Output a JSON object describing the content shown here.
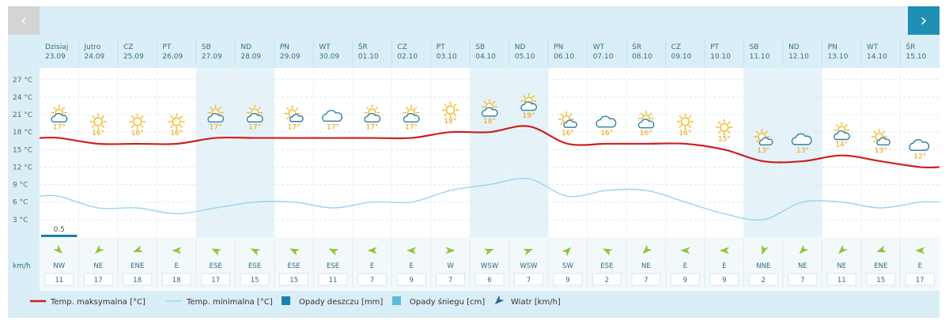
{
  "navigation": {
    "prev_icon": "chevron-left-icon",
    "next_icon": "chevron-right-icon",
    "prev_glyph": "‹",
    "next_glyph": "›"
  },
  "colors": {
    "max_temp": "#cc1f1f",
    "min_temp": "#8fd3ec",
    "rain": "#1b7fb0",
    "snow": "#5bbcd8",
    "wind_arrow": "#8cc63f",
    "weekend_band": "#e5f3f8",
    "panel": "#d9eef6"
  },
  "wind_unit": "km/h",
  "chart_data": {
    "type": "line",
    "ylim": [
      0,
      29
    ],
    "yticks": [
      {
        "value": 27,
        "label": "27 °C"
      },
      {
        "value": 24,
        "label": "24 °C"
      },
      {
        "value": 21,
        "label": "21 °C"
      },
      {
        "value": 18,
        "label": "18 °C"
      },
      {
        "value": 15,
        "label": "15 °C"
      },
      {
        "value": 12,
        "label": "12 °C"
      },
      {
        "value": 9,
        "label": "9 °C"
      },
      {
        "value": 6,
        "label": "6 °C"
      },
      {
        "value": 3,
        "label": "3 °C"
      }
    ],
    "days": [
      {
        "name": "Dzisiaj",
        "date": "23.09",
        "weekend": false,
        "icon": "partly-cloudy-sun-icon",
        "label": "17°",
        "wind_dir": "NW",
        "wind_angle": 135,
        "wind_speed": "11"
      },
      {
        "name": "Jutro",
        "date": "24.09",
        "weekend": false,
        "icon": "sun-icon",
        "label": "16°",
        "wind_dir": "NE",
        "wind_angle": 225,
        "wind_speed": "17"
      },
      {
        "name": "CZ",
        "date": "25.09",
        "weekend": false,
        "icon": "sun-icon",
        "label": "16°",
        "wind_dir": "ENE",
        "wind_angle": 250,
        "wind_speed": "18"
      },
      {
        "name": "PT",
        "date": "26.09",
        "weekend": false,
        "icon": "sun-icon",
        "label": "16°",
        "wind_dir": "E",
        "wind_angle": 270,
        "wind_speed": "18"
      },
      {
        "name": "SB",
        "date": "27.09",
        "weekend": true,
        "icon": "partly-cloudy-sun-icon",
        "label": "17°",
        "wind_dir": "ESE",
        "wind_angle": 295,
        "wind_speed": "17"
      },
      {
        "name": "ND",
        "date": "28.09",
        "weekend": true,
        "icon": "partly-cloudy-sun-icon",
        "label": "17°",
        "wind_dir": "ESE",
        "wind_angle": 295,
        "wind_speed": "15"
      },
      {
        "name": "PN",
        "date": "29.09",
        "weekend": false,
        "icon": "sun-cloud-icon",
        "label": "17°",
        "wind_dir": "ESE",
        "wind_angle": 295,
        "wind_speed": "15"
      },
      {
        "name": "WT",
        "date": "30.09",
        "weekend": false,
        "icon": "cloud-icon",
        "label": "17°",
        "wind_dir": "ESE",
        "wind_angle": 295,
        "wind_speed": "11"
      },
      {
        "name": "ŚR",
        "date": "01.10",
        "weekend": false,
        "icon": "partly-cloudy-sun-icon",
        "label": "17°",
        "wind_dir": "E",
        "wind_angle": 270,
        "wind_speed": "7"
      },
      {
        "name": "CZ",
        "date": "02.10",
        "weekend": false,
        "icon": "partly-cloudy-sun-icon",
        "label": "17°",
        "wind_dir": "E",
        "wind_angle": 270,
        "wind_speed": "9"
      },
      {
        "name": "PT",
        "date": "03.10",
        "weekend": false,
        "icon": "sun-icon",
        "label": "18°",
        "wind_dir": "W",
        "wind_angle": 90,
        "wind_speed": "7"
      },
      {
        "name": "SB",
        "date": "04.10",
        "weekend": true,
        "icon": "partly-cloudy-sun-icon",
        "label": "18°",
        "wind_dir": "WSW",
        "wind_angle": 70,
        "wind_speed": "6"
      },
      {
        "name": "ND",
        "date": "05.10",
        "weekend": true,
        "icon": "partly-cloudy-sun-icon",
        "label": "19°",
        "wind_dir": "WSW",
        "wind_angle": 70,
        "wind_speed": "7"
      },
      {
        "name": "PN",
        "date": "06.10",
        "weekend": false,
        "icon": "sun-cloud-icon",
        "label": "16°",
        "wind_dir": "SW",
        "wind_angle": 45,
        "wind_speed": "9"
      },
      {
        "name": "WT",
        "date": "07.10",
        "weekend": false,
        "icon": "cloud-icon",
        "label": "16°",
        "wind_dir": "ESE",
        "wind_angle": 295,
        "wind_speed": "2"
      },
      {
        "name": "ŚR",
        "date": "08.10",
        "weekend": false,
        "icon": "partly-cloudy-sun-icon",
        "label": "16°",
        "wind_dir": "NE",
        "wind_angle": 225,
        "wind_speed": "7"
      },
      {
        "name": "CZ",
        "date": "09.10",
        "weekend": false,
        "icon": "sun-icon",
        "label": "16°",
        "wind_dir": "E",
        "wind_angle": 270,
        "wind_speed": "9"
      },
      {
        "name": "PT",
        "date": "10.10",
        "weekend": false,
        "icon": "sun-icon",
        "label": "15°",
        "wind_dir": "E",
        "wind_angle": 270,
        "wind_speed": "9"
      },
      {
        "name": "SB",
        "date": "11.10",
        "weekend": true,
        "icon": "sun-cloud-icon",
        "label": "13°",
        "wind_dir": "NNE",
        "wind_angle": 200,
        "wind_speed": "2"
      },
      {
        "name": "ND",
        "date": "12.10",
        "weekend": true,
        "icon": "cloud-icon",
        "label": "13°",
        "wind_dir": "NE",
        "wind_angle": 225,
        "wind_speed": "7"
      },
      {
        "name": "PN",
        "date": "13.10",
        "weekend": false,
        "icon": "partly-cloudy-sun-icon",
        "label": "14°",
        "wind_dir": "NE",
        "wind_angle": 225,
        "wind_speed": "11"
      },
      {
        "name": "WT",
        "date": "14.10",
        "weekend": false,
        "icon": "sun-cloud-icon",
        "label": "13°",
        "wind_dir": "ENE",
        "wind_angle": 250,
        "wind_speed": "15"
      },
      {
        "name": "ŚR",
        "date": "15.10",
        "weekend": false,
        "icon": "cloud-icon",
        "label": "12°",
        "wind_dir": "E",
        "wind_angle": 270,
        "wind_speed": "17"
      }
    ],
    "series": [
      {
        "name": "Temp. maksymalna [°C]",
        "values": [
          17,
          16,
          16,
          16,
          17,
          17,
          17,
          17,
          17,
          17,
          18,
          18,
          19,
          16,
          16,
          16,
          16,
          15,
          13,
          13,
          14,
          13,
          12
        ]
      },
      {
        "name": "Temp. minimalna [°C]",
        "values": [
          7,
          5,
          5,
          4,
          5,
          6,
          6,
          5,
          6,
          6,
          8,
          9,
          10,
          7,
          8,
          8,
          6,
          4,
          3,
          6,
          6,
          5,
          6
        ]
      }
    ],
    "precipitation": [
      {
        "day_index": 0,
        "type": "rain",
        "value": 0.5,
        "label": "0.5"
      }
    ],
    "legend": [
      {
        "type": "line",
        "color": "#cc1f1f",
        "text": "Temp. maksymalna [°C]"
      },
      {
        "type": "thin-line",
        "color": "#8fd3ec",
        "text": "Temp. minimalna [°C]"
      },
      {
        "type": "square",
        "color": "#1b7fb0",
        "text": "Opady deszczu [mm]"
      },
      {
        "type": "square",
        "color": "#5bbcd8",
        "text": "Opady śniegu [cm]"
      },
      {
        "type": "arrow",
        "color": "#2f6b84",
        "text": "Wiatr [km/h]"
      }
    ]
  }
}
